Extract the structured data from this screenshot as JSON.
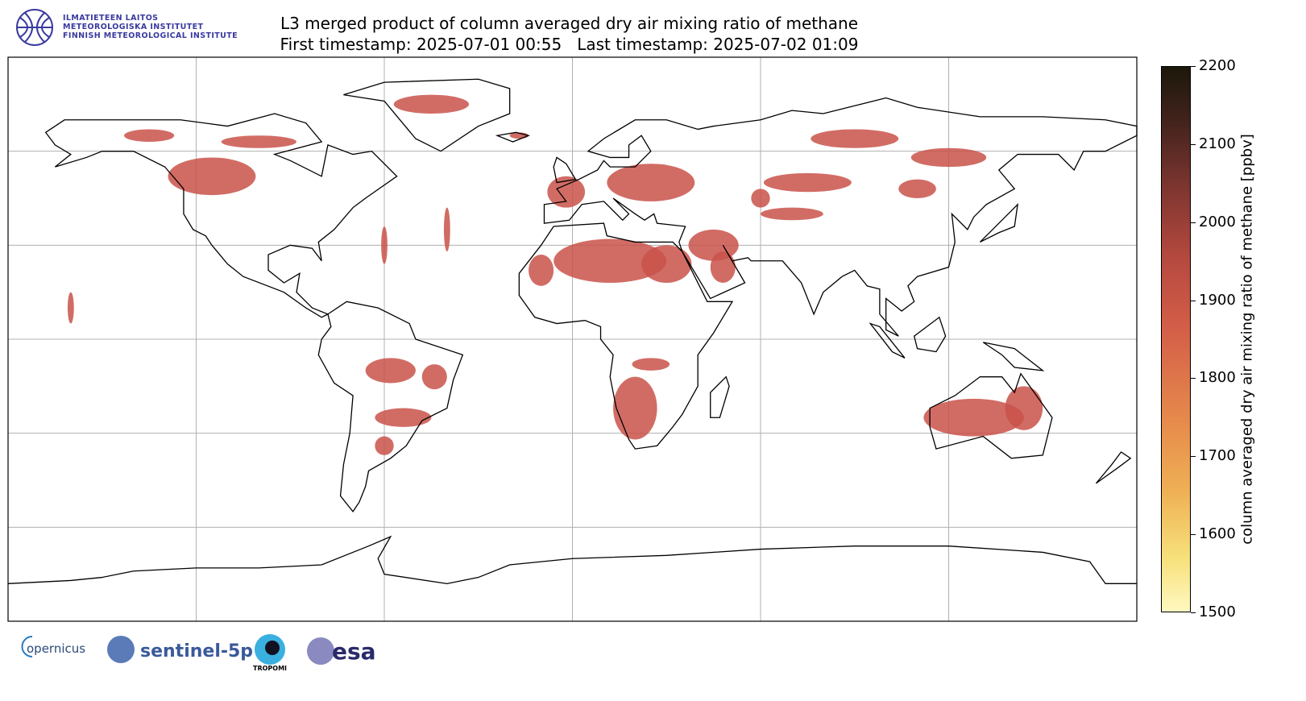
{
  "header": {
    "institute_lines": [
      "ILMATIETEEN LAITOS",
      "METEOROLOGISKA INSTITUTET",
      "FINNISH METEOROLOGICAL INSTITUTE"
    ],
    "title_line1": "L3 merged product of column averaged dry air mixing ratio of methane",
    "title_line2": "First timestamp: 2025-07-01 00:55   Last timestamp: 2025-07-02 01:09"
  },
  "colorbar": {
    "label": "column averaged dry air mixing ratio of methane [ppbv]",
    "min": 1500,
    "max": 2200,
    "ticks": [
      "1500",
      "1600",
      "1700",
      "1800",
      "1900",
      "2000",
      "2100",
      "2200"
    ],
    "colors": {
      "low": "#fff8c0",
      "mid": "#d45e48",
      "high": "#1c180a"
    }
  },
  "map": {
    "projection": "PlateCarree",
    "gridline_lon_step": 60,
    "gridline_lat_step": 30,
    "data_color": "#c9524a"
  },
  "footer_logos": {
    "copernicus": "opernicus",
    "sentinel": "sentinel-5p",
    "tropomi": "TROPOMI",
    "esa": "esa"
  }
}
